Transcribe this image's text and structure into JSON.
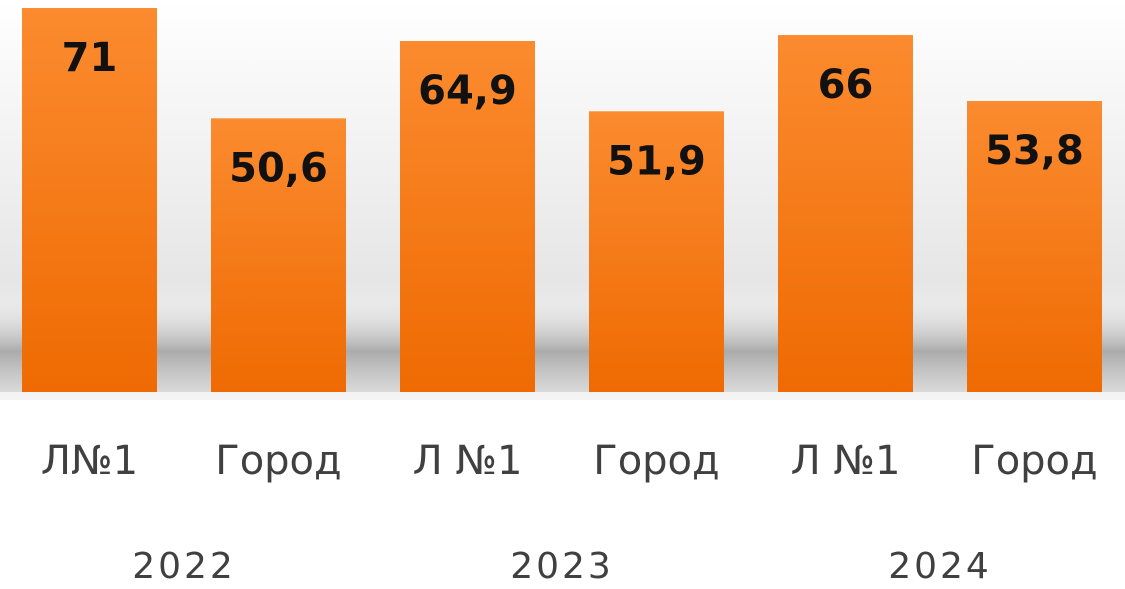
{
  "chart_data": {
    "type": "bar",
    "categories": [
      "Л№1",
      "Город",
      "Л №1",
      "Город",
      "Л №1",
      "Город"
    ],
    "groups": [
      "2022",
      "2023",
      "2024"
    ],
    "values": [
      71,
      50.6,
      64.9,
      51.9,
      66,
      53.8
    ],
    "value_labels": [
      "71",
      "50,6",
      "64,9",
      "51,9",
      "66",
      "53,8"
    ],
    "color": "#f47a1c",
    "ylim": [
      0,
      71
    ]
  }
}
